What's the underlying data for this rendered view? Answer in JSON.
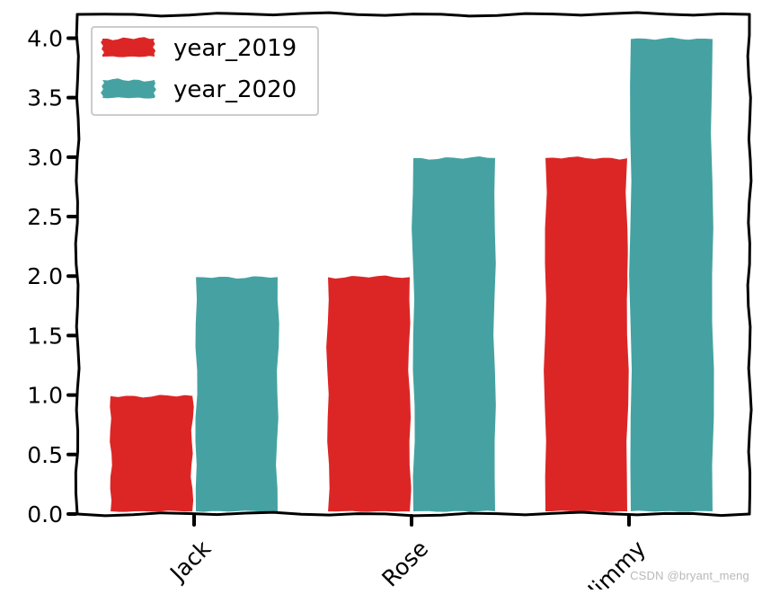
{
  "watermark": "CSDN @bryant_meng",
  "colors": {
    "year_2019": "#dc2626",
    "year_2020": "#46a2a2",
    "axis": "#000000",
    "background": "#ffffff"
  },
  "chart_data": {
    "type": "bar",
    "style": "xkcd",
    "categories": [
      "Jack",
      "Rose",
      "Jimmy"
    ],
    "series": [
      {
        "name": "year_2019",
        "values": [
          1.0,
          2.0,
          3.0
        ]
      },
      {
        "name": "year_2020",
        "values": [
          2.0,
          3.0,
          4.0
        ]
      }
    ],
    "title": "",
    "xlabel": "",
    "ylabel": "",
    "ylim": [
      0,
      4.2
    ],
    "yticks": [
      "0.0",
      "0.5",
      "1.0",
      "1.5",
      "2.0",
      "2.5",
      "3.0",
      "3.5",
      "4.0"
    ],
    "xtick_rotation": 45,
    "legend": "top-left",
    "grid": false
  }
}
